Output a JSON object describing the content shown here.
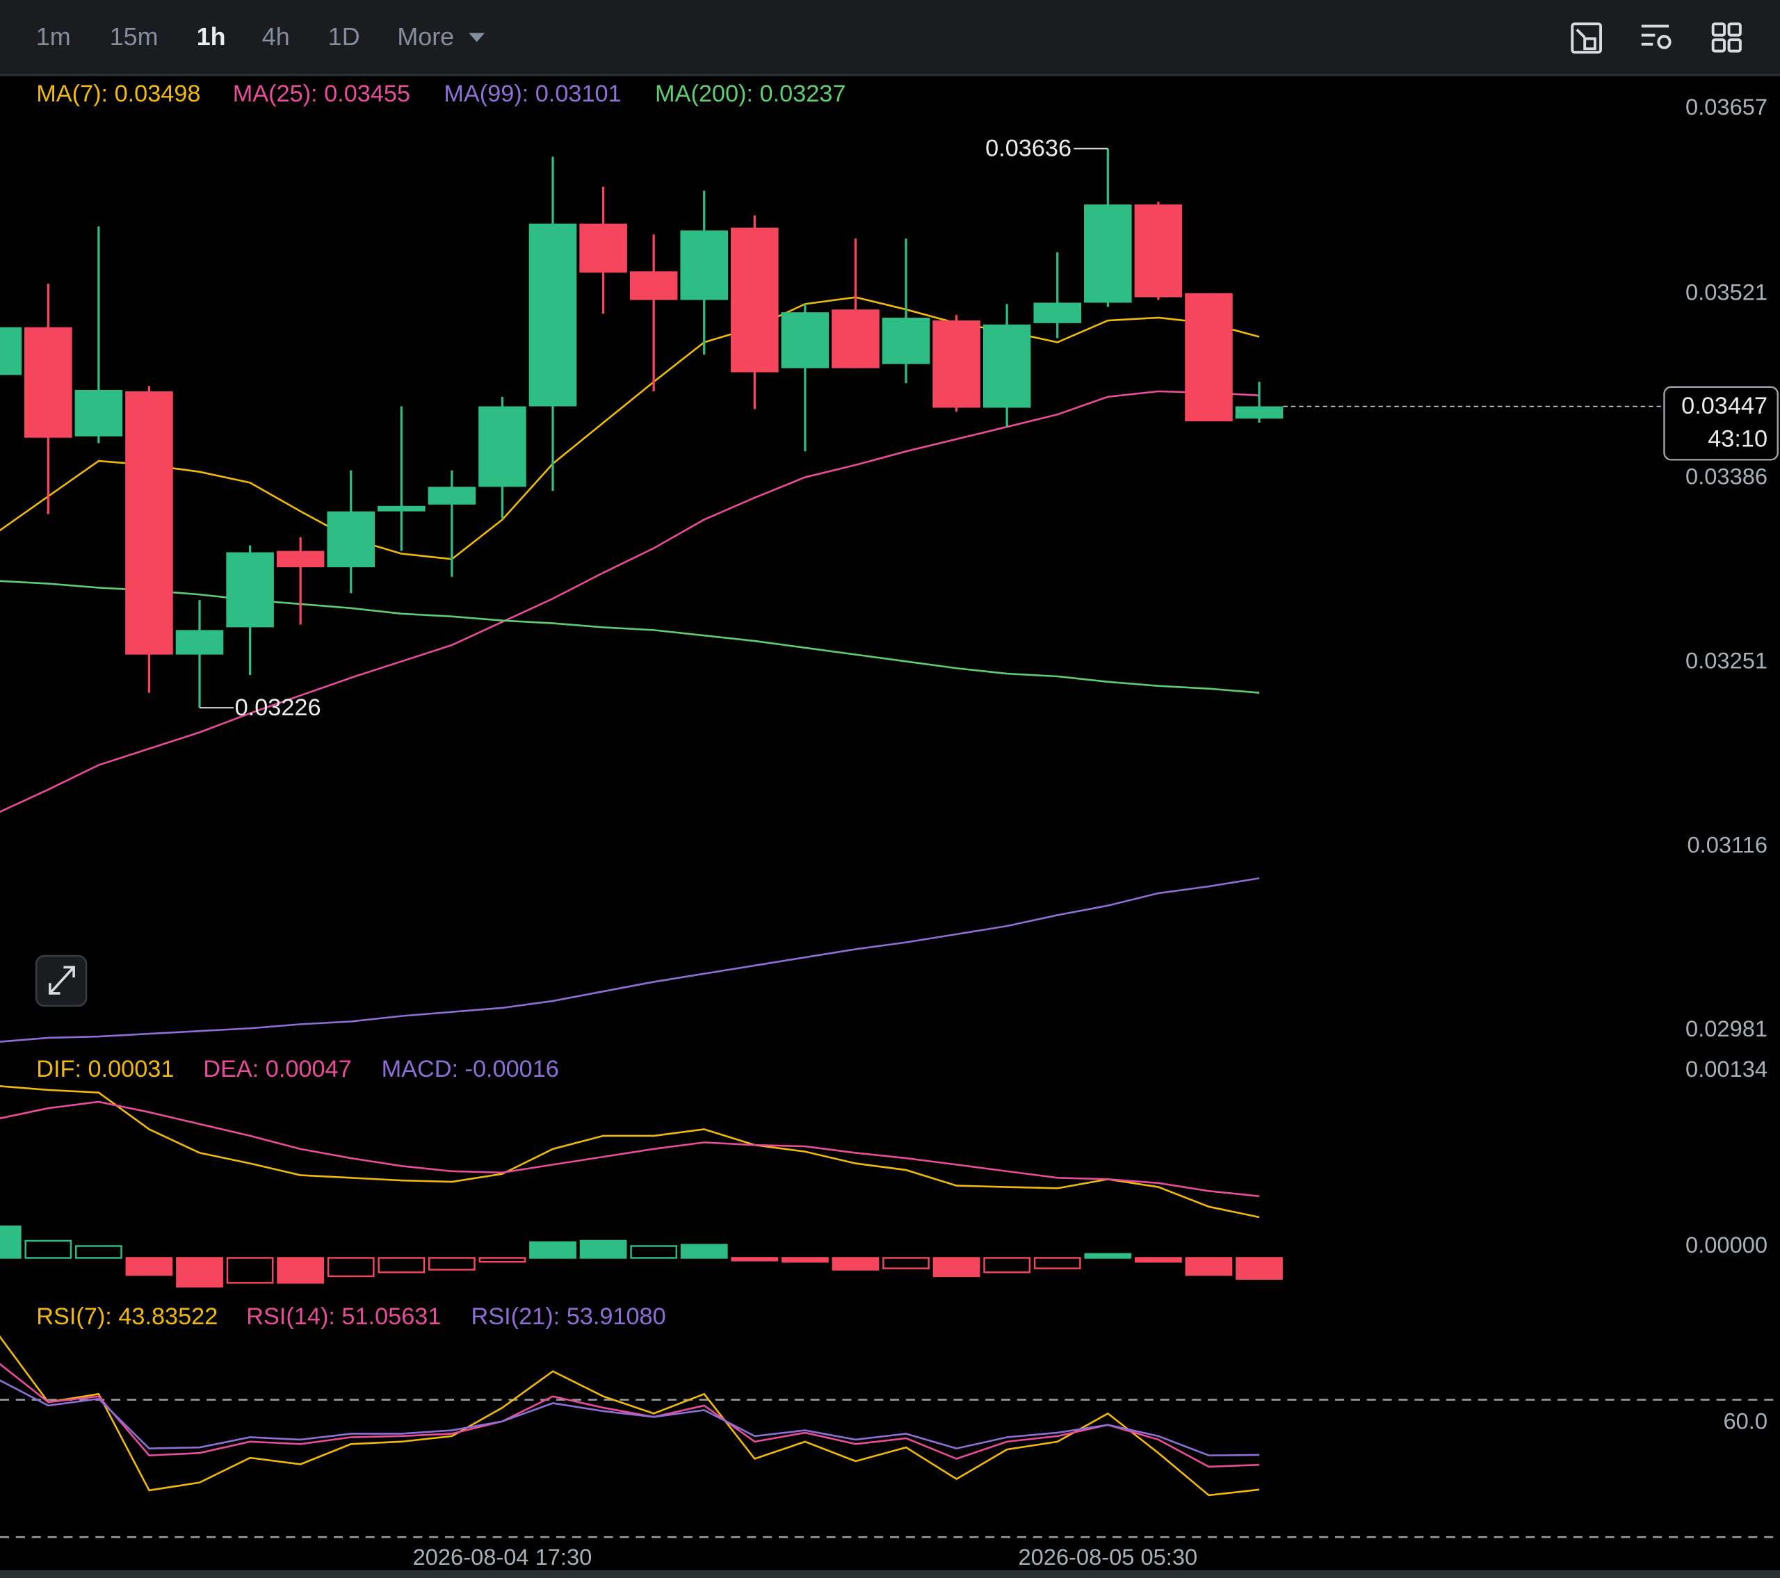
{
  "toolbar": {
    "intervals": [
      "1m",
      "15m",
      "1h",
      "4h",
      "1D",
      "More"
    ],
    "active": "1h"
  },
  "chart_data": [
    {
      "type": "candlestick",
      "categories": [
        null,
        null,
        null,
        null,
        null,
        null,
        null,
        null,
        null,
        null,
        "2026-08-04 17:30",
        null,
        null,
        null,
        null,
        null,
        null,
        null,
        null,
        null,
        null,
        null,
        "2026-08-05 05:30",
        null,
        null,
        null
      ],
      "open": [
        0.0347,
        0.03505,
        0.03425,
        0.03458,
        0.03265,
        0.03285,
        0.03341,
        0.03329,
        0.0337,
        0.03375,
        0.03388,
        0.03447,
        0.03581,
        0.03546,
        0.03525,
        0.03578,
        0.03475,
        0.03518,
        0.03478,
        0.0351,
        0.03446,
        0.03508,
        0.03523,
        0.03595,
        0.0353,
        0.03438
      ],
      "high": [
        0.03505,
        0.03537,
        0.03579,
        0.03462,
        0.03305,
        0.03345,
        0.03351,
        0.034,
        0.03447,
        0.034,
        0.03454,
        0.0363,
        0.03608,
        0.03573,
        0.03605,
        0.03587,
        0.03522,
        0.0357,
        0.0357,
        0.03514,
        0.03522,
        0.0356,
        0.03636,
        0.03597,
        0.0353,
        0.03465
      ],
      "low": [
        0.0347,
        0.03368,
        0.0342,
        0.03237,
        0.03226,
        0.0325,
        0.03287,
        0.0331,
        0.03341,
        0.03322,
        0.03365,
        0.03385,
        0.03515,
        0.03458,
        0.03485,
        0.03445,
        0.03414,
        0.03475,
        0.03464,
        0.03443,
        0.03432,
        0.03497,
        0.0352,
        0.03525,
        0.03436,
        0.03435
      ],
      "close": [
        0.03505,
        0.03424,
        0.03459,
        0.03265,
        0.03283,
        0.0334,
        0.03329,
        0.0337,
        0.03374,
        0.03388,
        0.03447,
        0.03581,
        0.03545,
        0.03525,
        0.03576,
        0.03472,
        0.03516,
        0.03475,
        0.03512,
        0.03446,
        0.03507,
        0.03523,
        0.03595,
        0.03527,
        0.03436,
        0.03447
      ],
      "up_color": "#2ebd85",
      "down_color": "#f6465d",
      "series": [
        {
          "name": "MA(7): 0.03498",
          "color": "#f0b90b",
          "values": [
            0.03355,
            0.03381,
            0.03407,
            0.03404,
            0.03399,
            0.03391,
            0.0337,
            0.0335,
            0.03339,
            0.03335,
            0.03364,
            0.03405,
            0.03435,
            0.03465,
            0.03494,
            0.03505,
            0.03522,
            0.03527,
            0.03518,
            0.03508,
            0.03502,
            0.03494,
            0.0351,
            0.03512,
            0.03508,
            0.03498
          ]
        },
        {
          "name": "MA(25): 0.03455",
          "color": "#e84c9a",
          "values": [
            0.03149,
            0.03166,
            0.03184,
            0.03196,
            0.03208,
            0.03222,
            0.03235,
            0.03248,
            0.0326,
            0.03272,
            0.03289,
            0.03306,
            0.03325,
            0.03343,
            0.03364,
            0.0338,
            0.03395,
            0.03404,
            0.03414,
            0.03423,
            0.03432,
            0.03441,
            0.03454,
            0.03458,
            0.03457,
            0.03455
          ]
        },
        {
          "name": "MA(99): 0.03101",
          "color": "#8d6fd6",
          "values": [
            0.02981,
            0.02984,
            0.02985,
            0.02987,
            0.02989,
            0.02991,
            0.02994,
            0.02996,
            0.03,
            0.03003,
            0.03006,
            0.03011,
            0.03018,
            0.03025,
            0.03031,
            0.03037,
            0.03043,
            0.03049,
            0.03054,
            0.0306,
            0.03066,
            0.03074,
            0.03081,
            0.0309,
            0.03095,
            0.03101
          ]
        },
        {
          "name": "MA(200): 0.03237",
          "color": "#5fce72",
          "values": [
            0.03319,
            0.03317,
            0.03314,
            0.03312,
            0.03309,
            0.03305,
            0.03302,
            0.03299,
            0.03295,
            0.03293,
            0.0329,
            0.03288,
            0.03285,
            0.03283,
            0.03279,
            0.03275,
            0.0327,
            0.03265,
            0.0326,
            0.03255,
            0.03251,
            0.03249,
            0.03245,
            0.03242,
            0.0324,
            0.03237
          ]
        }
      ],
      "ylim": [
        0.02975,
        0.0369
      ],
      "yticks": [
        0.03657,
        0.03521,
        0.03386,
        0.03251,
        0.03116,
        0.02981
      ],
      "countdown": "43:10"
    },
    {
      "type": "macd",
      "series": [
        {
          "name": "DIF: 0.00031",
          "color": "#f0b90b",
          "values": [
            0.00131,
            0.00128,
            0.00126,
            0.00098,
            0.0008,
            0.00072,
            0.00063,
            0.00061,
            0.00059,
            0.00058,
            0.00064,
            0.00083,
            0.00093,
            0.00093,
            0.00098,
            0.00086,
            0.00081,
            0.00072,
            0.00067,
            0.00055,
            0.00054,
            0.00053,
            0.0006,
            0.00054,
            0.00039,
            0.00031
          ]
        },
        {
          "name": "DEA: 0.00047",
          "color": "#e84c9a",
          "values": [
            0.00106,
            0.00114,
            0.00119,
            0.00111,
            0.00102,
            0.00093,
            0.00083,
            0.00076,
            0.0007,
            0.00066,
            0.00065,
            0.00071,
            0.00077,
            0.00083,
            0.00088,
            0.00086,
            0.00085,
            0.0008,
            0.00076,
            0.00071,
            0.00066,
            0.00061,
            0.0006,
            0.00057,
            0.00051,
            0.00047
          ]
        },
        {
          "name": "MACD: -0.00016",
          "type": "histogram",
          "color": "#8d6fd6",
          "up_color": "#2ebd85",
          "down_color": "#f6465d",
          "values": [
            0.00024,
            0.00013,
            9e-05,
            -0.00013,
            -0.00022,
            -0.00019,
            -0.00019,
            -0.00014,
            -0.00011,
            -9e-05,
            -3e-05,
            0.00012,
            0.00013,
            9e-05,
            0.0001,
            -2e-05,
            -3e-05,
            -9e-05,
            -8e-05,
            -0.00014,
            -0.00011,
            -8e-05,
            3e-05,
            -3e-05,
            -0.00013,
            -0.00016
          ]
        }
      ],
      "ylim": [
        -0.00032,
        0.00154
      ],
      "yticks": [
        0.00134,
        {
          "value": 0,
          "label": "0.00000"
        }
      ]
    },
    {
      "type": "rsi",
      "series": [
        {
          "name": "RSI(7): 43.83522",
          "color": "#f0b90b",
          "values": [
            89.2,
            69.3,
            71.7,
            43.6,
            45.9,
            53.1,
            51.2,
            57.1,
            57.8,
            59.4,
            67.7,
            78.3,
            71.0,
            66.0,
            71.7,
            52.8,
            57.8,
            52.1,
            56.1,
            46.9,
            55.5,
            57.8,
            66.0,
            54.5,
            42.2,
            43.83522
          ]
        },
        {
          "name": "RSI(14): 51.05631",
          "color": "#e84c9a",
          "values": [
            80.9,
            69.3,
            71.0,
            53.8,
            54.5,
            57.8,
            57.1,
            59.1,
            59.4,
            60.1,
            63.7,
            71.0,
            67.7,
            65.0,
            68.3,
            57.8,
            60.4,
            57.1,
            58.8,
            52.8,
            57.8,
            59.4,
            62.7,
            58.4,
            50.5,
            51.05631
          ]
        },
        {
          "name": "RSI(21): 53.91080",
          "color": "#8d6fd6",
          "values": [
            76.0,
            68.3,
            70.3,
            55.8,
            56.1,
            59.1,
            58.4,
            60.1,
            60.1,
            61.1,
            63.7,
            69.0,
            66.7,
            65.0,
            67.0,
            59.4,
            61.1,
            58.4,
            60.1,
            55.8,
            59.1,
            60.4,
            62.7,
            59.4,
            53.8,
            53.9108
          ]
        }
      ],
      "ylim": [
        28,
        99.1
      ],
      "yticks": [
        {
          "value": 60,
          "label": "60.0"
        }
      ],
      "levels": [
        30,
        70
      ]
    }
  ]
}
